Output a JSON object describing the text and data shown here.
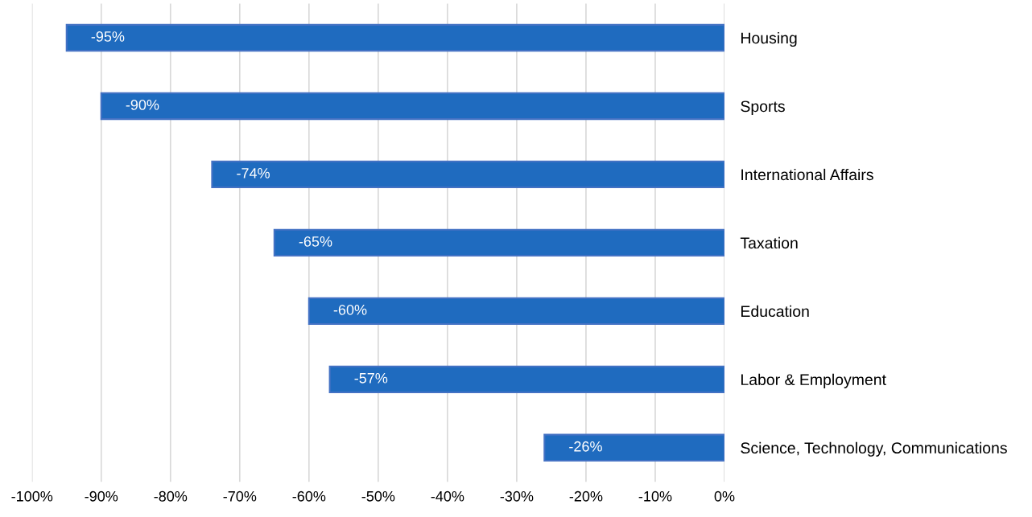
{
  "chart_data": {
    "type": "bar",
    "orientation": "horizontal",
    "categories": [
      "Housing",
      "Sports",
      "International Affairs",
      "Taxation",
      "Education",
      "Labor & Employment",
      "Science, Technology, Communications"
    ],
    "values": [
      -95,
      -90,
      -74,
      -65,
      -60,
      -57,
      -26
    ],
    "value_labels": [
      "-95%",
      "-90%",
      "-74%",
      "-65%",
      "-60%",
      "-57%",
      "-26%"
    ],
    "color": "#1f6bbf",
    "xlim": [
      -100,
      0
    ],
    "xticks": [
      {
        "value": -100,
        "label": "-100%"
      },
      {
        "value": -90,
        "label": "-90%"
      },
      {
        "value": -80,
        "label": "-80%"
      },
      {
        "value": -70,
        "label": "-70%"
      },
      {
        "value": -60,
        "label": "-60%"
      },
      {
        "value": -50,
        "label": "-50%"
      },
      {
        "value": -40,
        "label": "-40%"
      },
      {
        "value": -30,
        "label": "-30%"
      },
      {
        "value": -20,
        "label": "-20%"
      },
      {
        "value": -10,
        "label": "-10%"
      },
      {
        "value": 0,
        "label": "0%"
      }
    ],
    "grid": "x",
    "legend": false
  }
}
